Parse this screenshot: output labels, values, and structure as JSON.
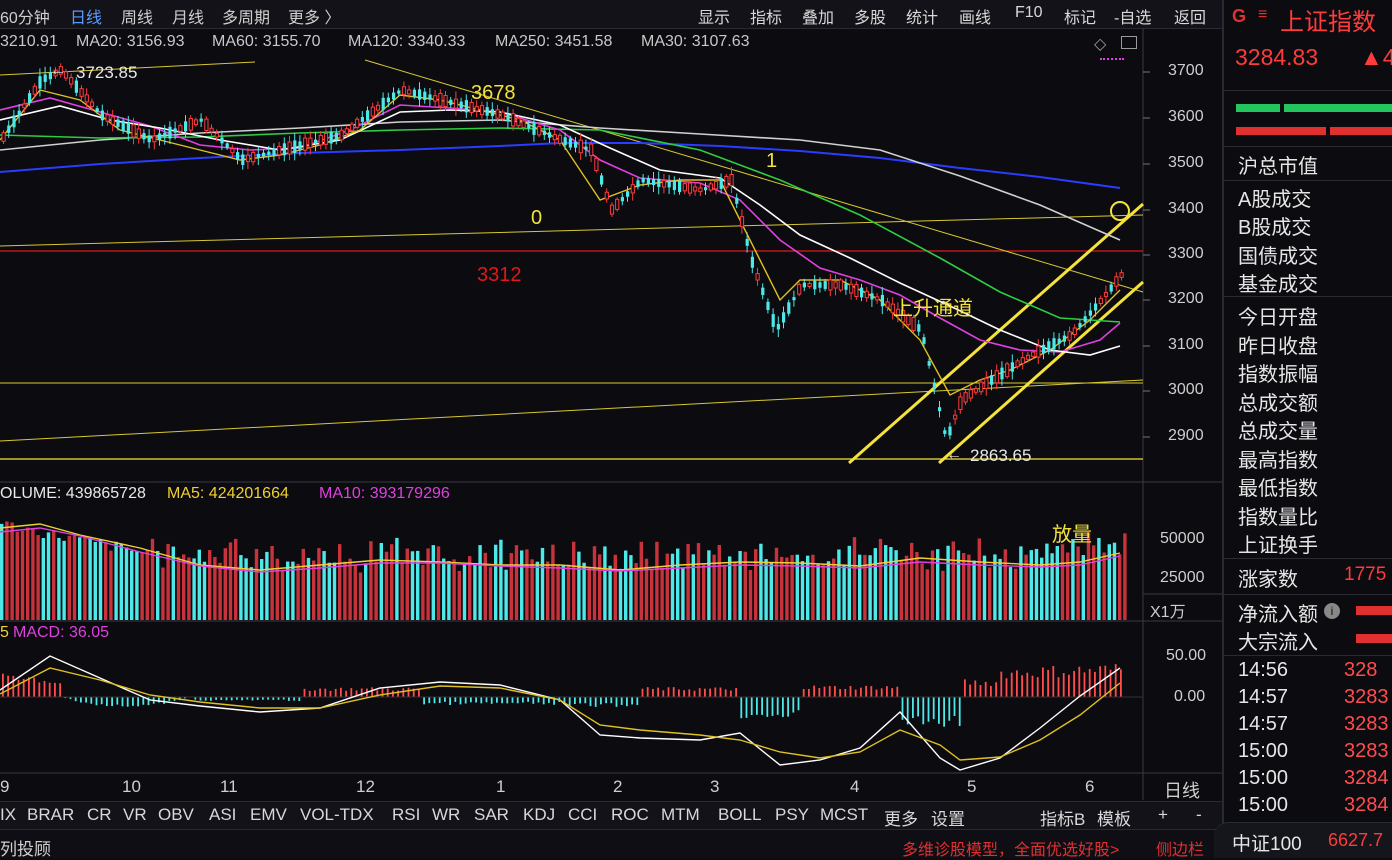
{
  "top_tabs": [
    "60分钟",
    "日线",
    "周线",
    "月线",
    "多周期",
    "更多 〉"
  ],
  "toolbar": [
    "显示",
    "指标",
    "叠加",
    "多股",
    "统计",
    "画线",
    "F10",
    "标记",
    "-自选",
    "返回"
  ],
  "ma_legend": [
    {
      "text": "3210.91",
      "color": "#e8e8e8"
    },
    {
      "text": "MA20: 3156.93",
      "color": "#e040e0"
    },
    {
      "text": "MA60: 3155.70",
      "color": "#2ecc40"
    },
    {
      "text": "MA120: 3340.33",
      "color": "#e8e8e8"
    },
    {
      "text": "MA250: 3451.58",
      "color": "#2a3cff"
    },
    {
      "text": "MA30: 3107.63",
      "color": "#e8e8e8"
    }
  ],
  "price_axis": [
    "3700",
    "3600",
    "3500",
    "3400",
    "3300",
    "3200",
    "3100",
    "3000",
    "2900"
  ],
  "annotations": {
    "high_label": "3723.85",
    "peak_label": "3678",
    "label_1": "1",
    "label_0": "0",
    "level_3312": "3312",
    "channel_label": "上升通道",
    "low_label": "2863.65",
    "volume_note": "放量"
  },
  "volume_legend": [
    {
      "text": "OLUME: 439865728",
      "color": "#e8e8e8"
    },
    {
      "text": "MA5: 424201664",
      "color": "#f0d030"
    },
    {
      "text": "MA10: 393179296",
      "color": "#e040e0"
    }
  ],
  "volume_axis": [
    "50000",
    "25000"
  ],
  "volume_unit": "X1万",
  "macd_legend": {
    "prefix": "5",
    "text": "MACD: 36.05"
  },
  "macd_axis": [
    "50.00",
    "0.00"
  ],
  "months": [
    "9",
    "10",
    "11",
    "12",
    "1",
    "2",
    "3",
    "4",
    "5",
    "6"
  ],
  "period_label": "日线",
  "indicators": [
    "IX",
    "BRAR",
    "CR",
    "VR",
    "OBV",
    "ASI",
    "EMV",
    "VOL-TDX",
    "RSI",
    "WR",
    "SAR",
    "KDJ",
    "CCI",
    "ROC",
    "MTM",
    "BOLL",
    "PSY",
    "MCST",
    "更多",
    "设置"
  ],
  "indicator_right": [
    "指标B",
    "模板",
    "+",
    "-"
  ],
  "status_left": "列投顾",
  "status_ad": "多维诊股模型，全面优选好股>",
  "status_side": "侧边栏",
  "right_panel": {
    "logo": "G",
    "title": "上证指数",
    "price": "3284.83",
    "change": "▲4",
    "fields": [
      "沪总市值",
      "A股成交",
      "B股成交",
      "国债成交",
      "基金成交",
      "今日开盘",
      "昨日收盘",
      "指数振幅",
      "总成交额",
      "总成交量",
      "最高指数",
      "最低指数",
      "指数量比",
      "上证换手"
    ],
    "up_label": "涨家数",
    "up_count": "1775",
    "flow_net": "净流入额",
    "flow_block": "大宗流入",
    "ticks": [
      {
        "time": "14:56",
        "price": "328"
      },
      {
        "time": "14:57",
        "price": "3283"
      },
      {
        "time": "14:57",
        "price": "3283"
      },
      {
        "time": "15:00",
        "price": "3283"
      },
      {
        "time": "15:00",
        "price": "3284"
      },
      {
        "time": "15:00",
        "price": "3284"
      }
    ],
    "bottom_name": "中证100",
    "bottom_value": "6627.7"
  },
  "colors": {
    "up": "#ff3b3b",
    "down": "#4de8e8",
    "yellow": "#f5e23a",
    "bg": "#0b0b10"
  }
}
